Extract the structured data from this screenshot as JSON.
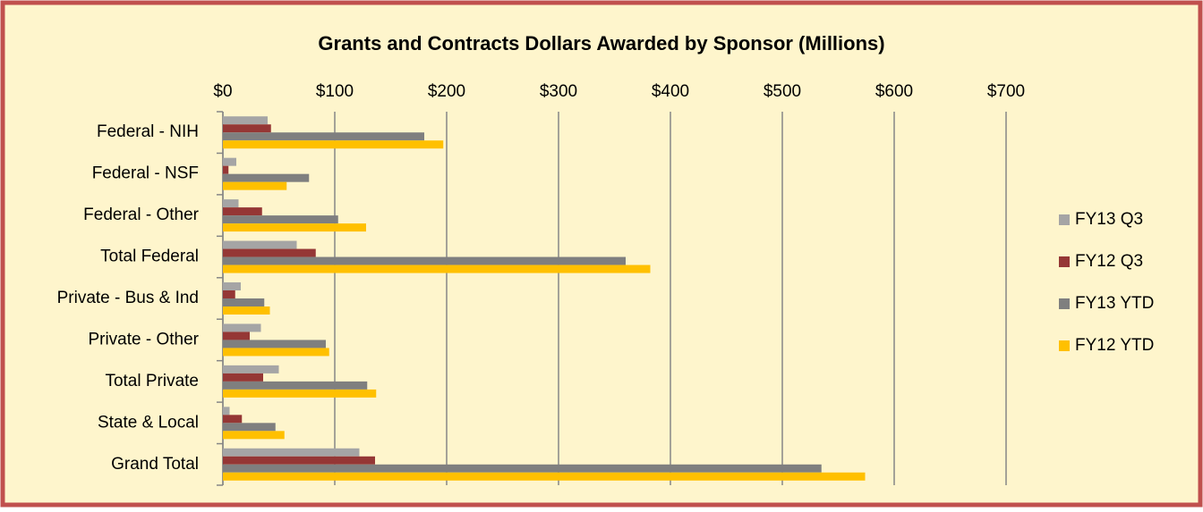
{
  "chart_data": {
    "type": "bar",
    "orientation": "horizontal",
    "title": "Grants and Contracts Dollars Awarded by Sponsor (Millions)",
    "categories": [
      "Federal - NIH",
      "Federal - NSF",
      "Federal - Other",
      "Total Federal",
      "Private - Bus & Ind",
      "Private - Other",
      "Total Private",
      "State & Local",
      "Grand Total"
    ],
    "series": [
      {
        "name": "FY13 Q3",
        "color": "#a5a5a5",
        "values": [
          40,
          12,
          14,
          66,
          16,
          34,
          50,
          6,
          122
        ]
      },
      {
        "name": "FY12 Q3",
        "color": "#953735",
        "values": [
          43,
          5,
          35,
          83,
          11,
          24,
          36,
          17,
          136
        ]
      },
      {
        "name": "FY13 YTD",
        "color": "#7f7f7f",
        "values": [
          180,
          77,
          103,
          360,
          37,
          92,
          129,
          47,
          535
        ]
      },
      {
        "name": "FY12 YTD",
        "color": "#ffc000",
        "values": [
          197,
          57,
          128,
          382,
          42,
          95,
          137,
          55,
          574
        ]
      }
    ],
    "xlim": [
      0,
      700
    ],
    "xticks": [
      {
        "value": 0,
        "label": "$0"
      },
      {
        "value": 100,
        "label": "$100"
      },
      {
        "value": 200,
        "label": "$200"
      },
      {
        "value": 300,
        "label": "$300"
      },
      {
        "value": 400,
        "label": "$400"
      },
      {
        "value": 500,
        "label": "$500"
      },
      {
        "value": 600,
        "label": "$600"
      },
      {
        "value": 700,
        "label": "$700"
      }
    ],
    "grid": true,
    "legend": "right"
  }
}
